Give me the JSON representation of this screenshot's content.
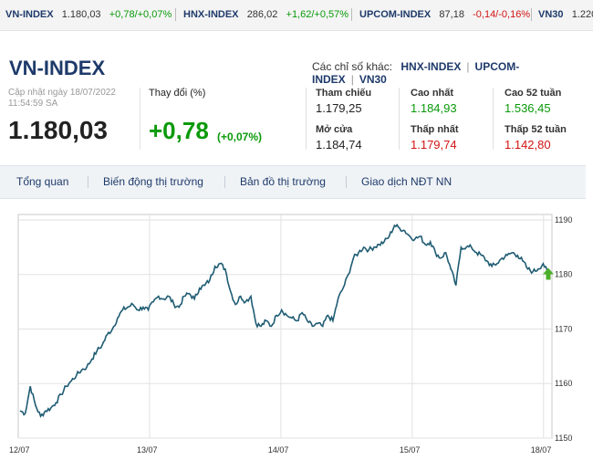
{
  "ticker": [
    {
      "name": "VN-INDEX",
      "value": "1.180,03",
      "change": "+0,78/+0,07%",
      "dir": "up"
    },
    {
      "name": "HNX-INDEX",
      "value": "286,02",
      "change": "+1,62/+0,57%",
      "dir": "up"
    },
    {
      "name": "UPCOM-INDEX",
      "value": "87,18",
      "change": "-0,14/-0,16%",
      "dir": "down"
    },
    {
      "name": "VN30",
      "value": "1.220",
      "change": "",
      "dir": "up"
    }
  ],
  "header": {
    "title": "VN-INDEX",
    "other_label": "Các chỉ số khác:",
    "other_links": [
      "HNX-INDEX",
      "UPCOM-INDEX",
      "VN30"
    ]
  },
  "summary": {
    "updated_line1": "Cập nhật ngày 18/07/2022",
    "updated_line2": "11:54:59 SA",
    "value": "1.180,03",
    "change_label": "Thay đổi (%)",
    "change": "+0,78",
    "change_pct": "(+0,07%)"
  },
  "stats": {
    "ref_label": "Tham chiếu",
    "ref_value": "1.179,25",
    "open_label": "Mở cửa",
    "open_value": "1.184,74",
    "high_label": "Cao nhất",
    "high_value": "1.184,93",
    "low_label": "Thấp nhất",
    "low_value": "1.179,74",
    "high52_label": "Cao 52 tuần",
    "high52_value": "1.536,45",
    "low52_label": "Thấp 52 tuần",
    "low52_value": "1.142,80"
  },
  "tabs": [
    "Tổng quan",
    "Biến động thị trường",
    "Bản đồ thị trường",
    "Giao dịch NĐT NN"
  ],
  "colors": {
    "up": "#0a9a0a",
    "down": "#d21414",
    "brand": "#1e3a6a",
    "line": "#1f5c73",
    "marker": "#4caf2a"
  },
  "chart_data": {
    "type": "line",
    "x_labels": [
      "12/07",
      "13/07",
      "14/07",
      "15/07",
      "18/07"
    ],
    "y_ticks": [
      1150,
      1160,
      1170,
      1180,
      1190
    ],
    "ylim": [
      1150,
      1191
    ],
    "grid": true,
    "current_marker": "up-arrow",
    "series": [
      {
        "values": [
          1155,
          1154.5,
          1159.5,
          1156,
          1154,
          1155,
          1155.5,
          1156.5,
          1158,
          1159.5,
          1160.5,
          1161.5,
          1162.5,
          1163,
          1164.5,
          1166,
          1167,
          1169,
          1170,
          1172,
          1173.5,
          1174,
          1174.5,
          1173.5,
          1174,
          1173.5,
          1175,
          1176,
          1175.5,
          1176,
          1174.5,
          1174,
          1176,
          1176.5,
          1175.5,
          1177.5,
          1178,
          1179,
          1181.5,
          1182,
          1181,
          1177,
          1174.5,
          1176,
          1175,
          1176,
          1171,
          1170.5,
          1171.5,
          1170.5,
          1172.5,
          1173.5,
          1172.5,
          1172,
          1171.5,
          1173,
          1171.5,
          1170.5,
          1171,
          1170.5,
          1172.5,
          1171.5,
          1175.5,
          1177.5,
          1180,
          1183,
          1184,
          1185,
          1184.5,
          1185,
          1185.5,
          1186,
          1187,
          1189,
          1188.5,
          1188,
          1187,
          1186.5,
          1187,
          1185.5,
          1186,
          1184,
          1183,
          1184,
          1181,
          1178,
          1185,
          1185,
          1185,
          1184,
          1183.5,
          1182.5,
          1181.5,
          1182,
          1183,
          1183.5,
          1184,
          1183.5,
          1182.5,
          1181,
          1180.5,
          1181,
          1182,
          1180.03
        ]
      }
    ]
  }
}
